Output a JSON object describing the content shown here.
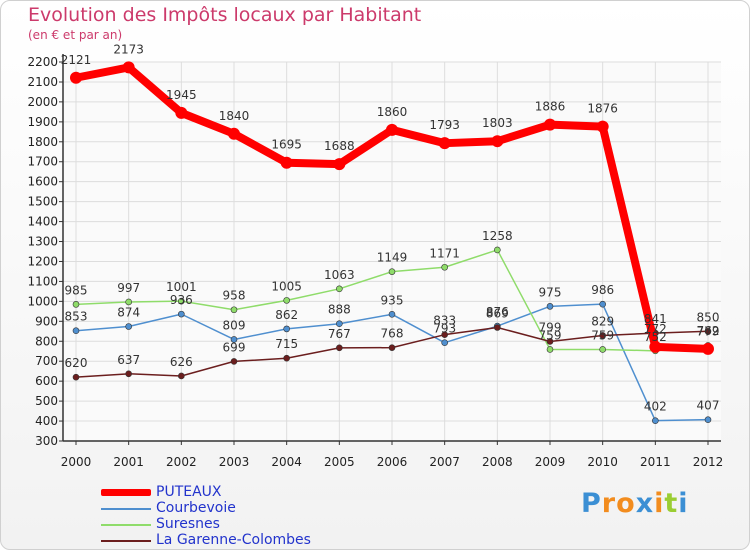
{
  "title": "Evolution des Impôts locaux par Habitant",
  "subtitle": "(en € et par an)",
  "chart_data": {
    "type": "line",
    "title": "Evolution des Impôts locaux par Habitant",
    "subtitle": "(en € et par an)",
    "x": [
      "2000",
      "2001",
      "2002",
      "2003",
      "2004",
      "2005",
      "2006",
      "2007",
      "2008",
      "2009",
      "2010",
      "2011",
      "2012"
    ],
    "ylim": [
      300,
      2200
    ],
    "yticks": [
      300,
      400,
      500,
      600,
      700,
      800,
      900,
      1000,
      1100,
      1200,
      1300,
      1400,
      1500,
      1600,
      1700,
      1800,
      1900,
      2000,
      2100,
      2200
    ],
    "grid": true,
    "legend_position": "bottom-left",
    "series": [
      {
        "name": "PUTEAUX",
        "color": "#ff0000",
        "values": [
          2121,
          2173,
          1945,
          1840,
          1695,
          1688,
          1860,
          1793,
          1803,
          1886,
          1876,
          772,
          762
        ]
      },
      {
        "name": "Courbevoie",
        "color": "#4f8fcf",
        "values": [
          853,
          874,
          936,
          809,
          862,
          888,
          935,
          793,
          876,
          975,
          986,
          402,
          407
        ]
      },
      {
        "name": "Suresnes",
        "color": "#8fdc6a",
        "values": [
          985,
          997,
          1001,
          958,
          1005,
          1063,
          1149,
          1171,
          1258,
          759,
          759,
          752,
          779
        ]
      },
      {
        "name": "La Garenne-Colombes",
        "color": "#6b1e1e",
        "values": [
          620,
          637,
          626,
          699,
          715,
          767,
          768,
          833,
          869,
          799,
          829,
          841,
          850
        ]
      }
    ]
  },
  "legend": [
    "PUTEAUX",
    "Courbevoie",
    "Suresnes",
    "La Garenne-Colombes"
  ],
  "logo": {
    "text": "Proxiti",
    "letters": [
      "P",
      "r",
      "o",
      "x",
      "i",
      "t",
      "i"
    ],
    "colors": [
      "#3b8fd4",
      "#f28c1e",
      "#f28c1e",
      "#3b8fd4",
      "#f28c1e",
      "#9acd32",
      "#3b8fd4"
    ]
  }
}
